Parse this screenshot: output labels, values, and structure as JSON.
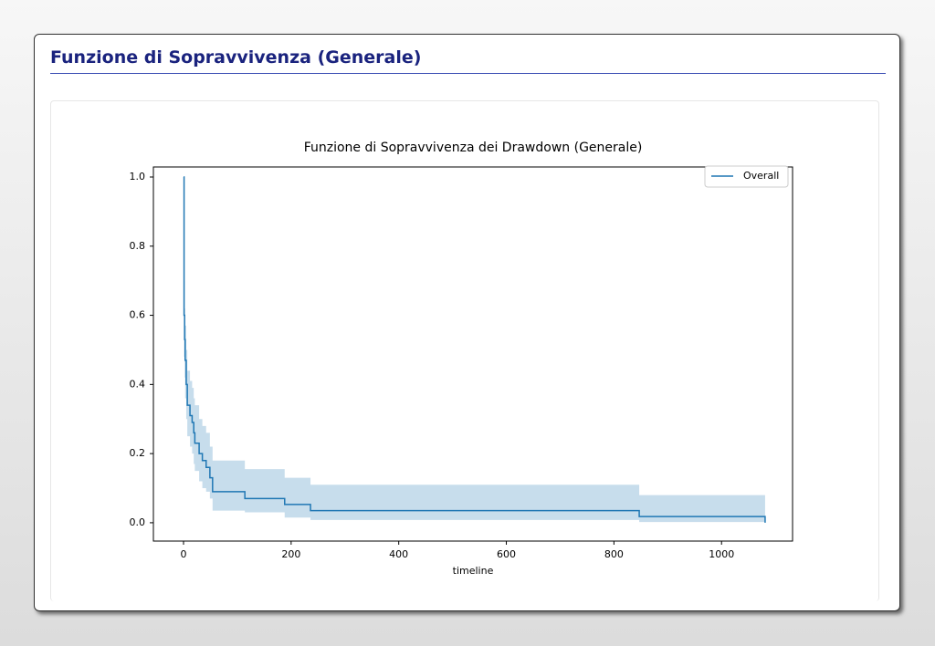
{
  "header": {
    "title": "Funzione di Sopravvivenza (Generale)"
  },
  "chart_data": {
    "type": "line",
    "step": "post",
    "title": "Funzione di Sopravvivenza dei Drawdown (Generale)",
    "x_label": "timeline",
    "x": [
      0,
      1,
      2,
      3,
      5,
      7,
      12,
      16,
      19,
      21,
      29,
      35,
      42,
      49,
      54,
      114,
      188,
      236,
      847,
      1081
    ],
    "series": [
      {
        "name": "Overall",
        "color": "#1f77b4",
        "values": [
          1.0,
          0.6,
          0.53,
          0.47,
          0.4,
          0.34,
          0.31,
          0.29,
          0.26,
          0.23,
          0.2,
          0.18,
          0.16,
          0.13,
          0.09,
          0.07,
          0.053,
          0.035,
          0.018,
          0.0
        ],
        "ci_upper": [
          1.0,
          0.7,
          0.62,
          0.57,
          0.5,
          0.44,
          0.41,
          0.39,
          0.36,
          0.34,
          0.3,
          0.28,
          0.26,
          0.22,
          0.18,
          0.155,
          0.13,
          0.11,
          0.08,
          0.08
        ],
        "ci_lower": [
          1.0,
          0.48,
          0.42,
          0.36,
          0.3,
          0.25,
          0.22,
          0.2,
          0.17,
          0.15,
          0.12,
          0.1,
          0.09,
          0.07,
          0.035,
          0.03,
          0.015,
          0.008,
          0.002,
          0.0
        ]
      }
    ],
    "xlim": [
      -56,
      1132
    ],
    "ylim": [
      -0.053,
      1.029
    ],
    "xticks": [
      0,
      200,
      400,
      600,
      800,
      1000
    ],
    "yticks": [
      {
        "value": 0,
        "label": "0.0"
      },
      {
        "value": 0.2,
        "label": "0.2"
      },
      {
        "value": 0.4,
        "label": "0.4"
      },
      {
        "value": 0.6,
        "label": "0.6"
      },
      {
        "value": 0.8,
        "label": "0.8"
      },
      {
        "value": 1.0,
        "label": "1.0"
      }
    ],
    "legend": "upper right"
  }
}
